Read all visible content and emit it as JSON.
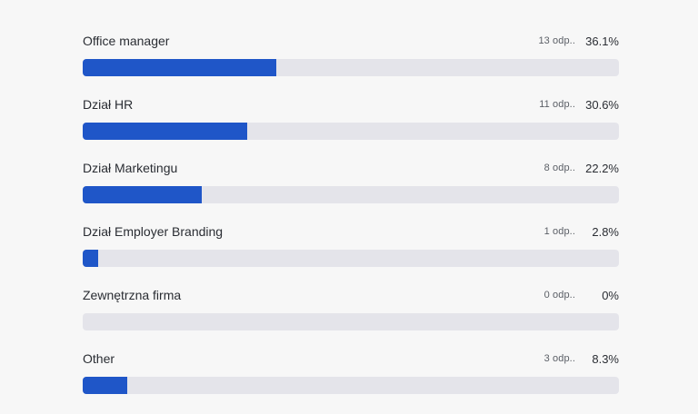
{
  "chart_data": {
    "type": "bar",
    "orientation": "horizontal",
    "categories": [
      "Office manager",
      "Dział HR",
      "Dział Marketingu",
      "Dział Employer Branding",
      "Zewnętrzna firma",
      "Other"
    ],
    "values": [
      36.1,
      30.6,
      22.2,
      2.8,
      0,
      8.3
    ],
    "xlim": [
      0,
      100
    ],
    "grid": false
  },
  "options": [
    {
      "label": "Office manager",
      "count_text": "13 odp..",
      "percent_text": "36.1%"
    },
    {
      "label": "Dział HR",
      "count_text": "11 odp..",
      "percent_text": "30.6%"
    },
    {
      "label": "Dział Marketingu",
      "count_text": "8 odp..",
      "percent_text": "22.2%"
    },
    {
      "label": "Dział Employer Branding",
      "count_text": "1 odp..",
      "percent_text": "2.8%"
    },
    {
      "label": "Zewnętrzna firma",
      "count_text": "0 odp..",
      "percent_text": "0%"
    },
    {
      "label": "Other",
      "count_text": "3 odp..",
      "percent_text": "8.3%"
    }
  ],
  "colors": {
    "bar_fill": "#1f56c8",
    "bar_track": "#e4e4ea",
    "background": "#f7f7f7"
  }
}
